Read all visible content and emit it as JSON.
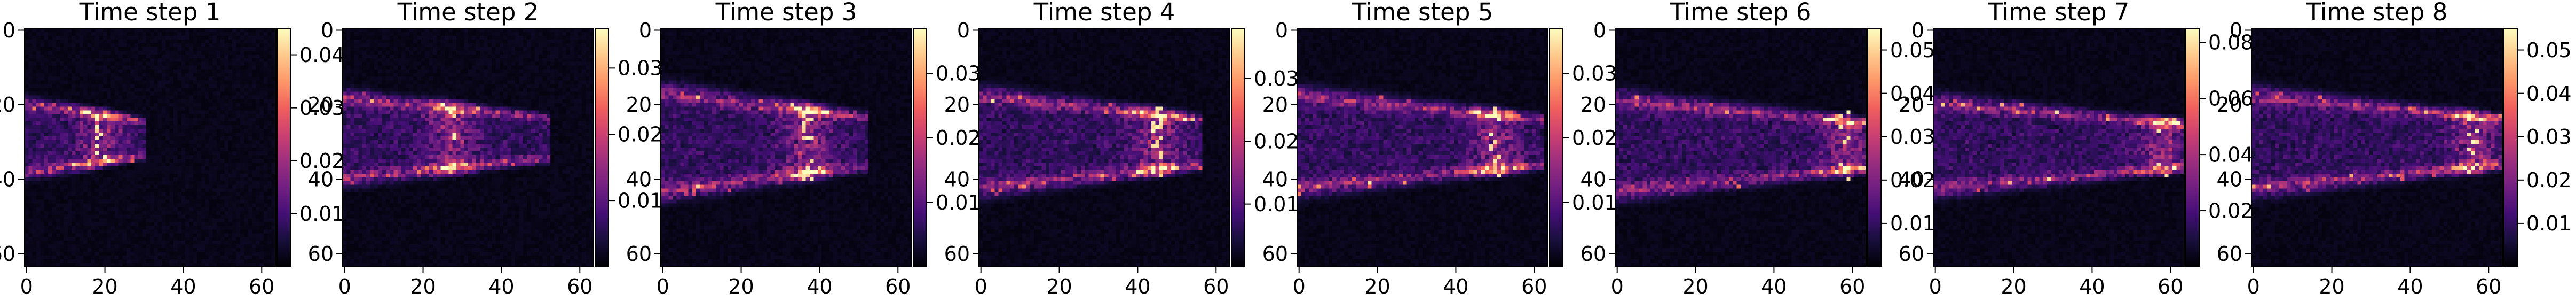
{
  "figure": {
    "background": "#ffffff",
    "colormap": "magma",
    "colormap_stops": [
      "#000004",
      "#180f3d",
      "#440f76",
      "#721f81",
      "#9e2f7f",
      "#cd4071",
      "#f1605d",
      "#fd9668",
      "#feca8d",
      "#fcfdbf"
    ]
  },
  "chart_data": [
    {
      "type": "heatmap",
      "title": "Time step 1",
      "grid": false,
      "xlim": [
        0,
        63
      ],
      "ylim": [
        63,
        0
      ],
      "xticks": [
        "0",
        "20",
        "40",
        "60"
      ],
      "yticks": [
        "0",
        "20",
        "40",
        "60"
      ],
      "colorbar": {
        "range": [
          0.0,
          0.045
        ],
        "ticks": [
          "0.01",
          "0.02",
          "0.03",
          "0.04"
        ]
      },
      "plume": {
        "x_start": 0,
        "x_end": 30,
        "y_center": 29,
        "half_width": 10,
        "peak_x": 19
      }
    },
    {
      "type": "heatmap",
      "title": "Time step 2",
      "grid": false,
      "xlim": [
        0,
        63
      ],
      "ylim": [
        63,
        0
      ],
      "xticks": [
        "0",
        "20",
        "40",
        "60"
      ],
      "yticks": [
        "0",
        "20",
        "40",
        "60"
      ],
      "colorbar": {
        "range": [
          0.0,
          0.036
        ],
        "ticks": [
          "0.01",
          "0.02",
          "0.03"
        ]
      },
      "plume": {
        "x_start": 0,
        "x_end": 52,
        "y_center": 29,
        "half_width": 12,
        "peak_x": 27
      }
    },
    {
      "type": "heatmap",
      "title": "Time step 3",
      "grid": false,
      "xlim": [
        0,
        63
      ],
      "ylim": [
        63,
        0
      ],
      "xticks": [
        "0",
        "20",
        "40",
        "60"
      ],
      "yticks": [
        "0",
        "20",
        "40",
        "60"
      ],
      "colorbar": {
        "range": [
          0.0,
          0.037
        ],
        "ticks": [
          "0.01",
          "0.02",
          "0.03"
        ]
      },
      "plume": {
        "x_start": 0,
        "x_end": 52,
        "y_center": 30,
        "half_width": 15,
        "peak_x": 37
      }
    },
    {
      "type": "heatmap",
      "title": "Time step 4",
      "grid": false,
      "xlim": [
        0,
        63
      ],
      "ylim": [
        63,
        0
      ],
      "xticks": [
        "0",
        "20",
        "40",
        "60"
      ],
      "yticks": [
        "0",
        "20",
        "40",
        "60"
      ],
      "colorbar": {
        "range": [
          0.0,
          0.038
        ],
        "ticks": [
          "0.01",
          "0.02",
          "0.03"
        ]
      },
      "plume": {
        "x_start": 0,
        "x_end": 56,
        "y_center": 30,
        "half_width": 14,
        "peak_x": 45
      }
    },
    {
      "type": "heatmap",
      "title": "Time step 5",
      "grid": false,
      "xlim": [
        0,
        63
      ],
      "ylim": [
        63,
        0
      ],
      "xticks": [
        "0",
        "20",
        "40",
        "60"
      ],
      "yticks": [
        "0",
        "20",
        "40",
        "60"
      ],
      "colorbar": {
        "range": [
          0.0,
          0.037
        ],
        "ticks": [
          "0.01",
          "0.02",
          "0.03"
        ]
      },
      "plume": {
        "x_start": 0,
        "x_end": 62,
        "y_center": 30,
        "half_width": 14,
        "peak_x": 50
      }
    },
    {
      "type": "heatmap",
      "title": "Time step 6",
      "grid": false,
      "xlim": [
        0,
        63
      ],
      "ylim": [
        63,
        0
      ],
      "xticks": [
        "0",
        "20",
        "40",
        "60"
      ],
      "yticks": [
        "0",
        "20",
        "40",
        "60"
      ],
      "colorbar": {
        "range": [
          0.0,
          0.055
        ],
        "ticks": [
          "0.01",
          "0.02",
          "0.03",
          "0.04",
          "0.05"
        ]
      },
      "plume": {
        "x_start": 0,
        "x_end": 63,
        "y_center": 31,
        "half_width": 14,
        "peak_x": 58
      }
    },
    {
      "type": "heatmap",
      "title": "Time step 7",
      "grid": false,
      "xlim": [
        0,
        63
      ],
      "ylim": [
        63,
        0
      ],
      "xticks": [
        "0",
        "20",
        "40",
        "60"
      ],
      "yticks": [
        "0",
        "20",
        "40",
        "60"
      ],
      "colorbar": {
        "range": [
          0.0,
          0.085
        ],
        "ticks": [
          "0.02",
          "0.04",
          "0.06",
          "0.08"
        ]
      },
      "plume": {
        "x_start": 0,
        "x_end": 63,
        "y_center": 31,
        "half_width": 13,
        "peak_x": 58
      }
    },
    {
      "type": "heatmap",
      "title": "Time step 8",
      "grid": false,
      "xlim": [
        0,
        63
      ],
      "ylim": [
        63,
        0
      ],
      "xticks": [
        "0",
        "20",
        "40",
        "60"
      ],
      "yticks": [
        "0",
        "20",
        "40",
        "60"
      ],
      "colorbar": {
        "range": [
          0.0,
          0.055
        ],
        "ticks": [
          "0.01",
          "0.02",
          "0.03",
          "0.04",
          "0.05"
        ]
      },
      "plume": {
        "x_start": 0,
        "x_end": 63,
        "y_center": 30,
        "half_width": 14,
        "peak_x": 56
      }
    }
  ]
}
